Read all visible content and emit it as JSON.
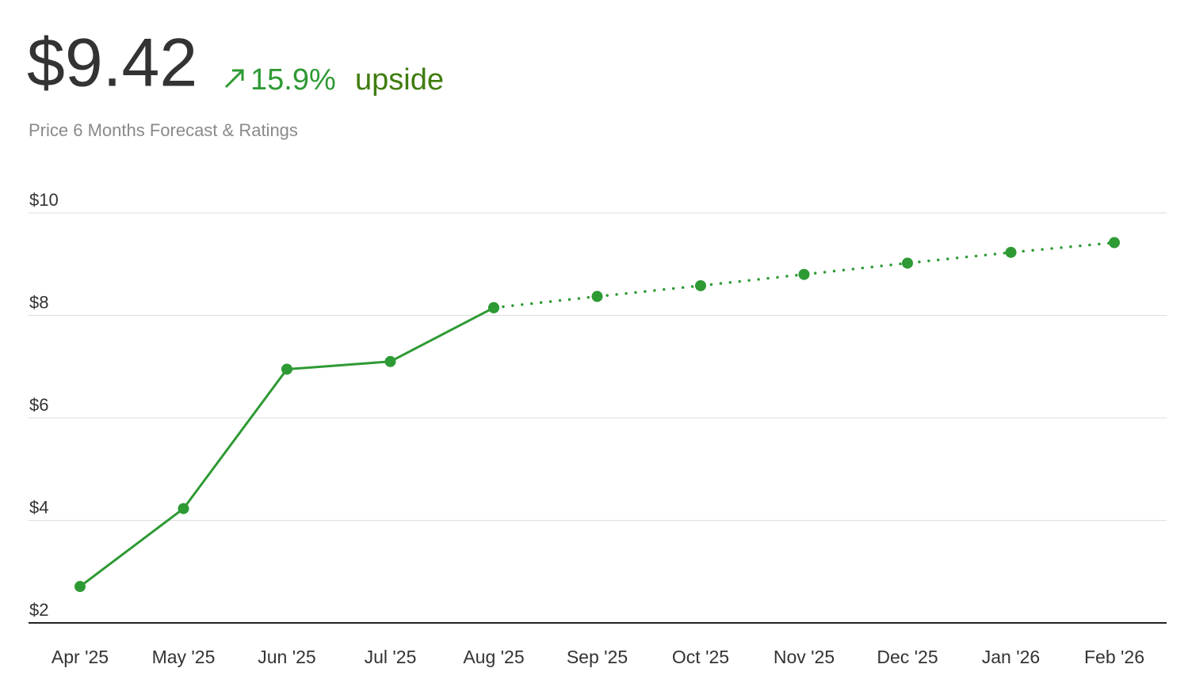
{
  "header": {
    "price": "$9.42",
    "change": "15.9%",
    "change_label": "upside",
    "subtitle": "Price 6 Months Forecast & Ratings"
  },
  "chart_data": {
    "type": "line",
    "categories": [
      "Apr '25",
      "May '25",
      "Jun '25",
      "Jul '25",
      "Aug '25",
      "Sep '25",
      "Oct '25",
      "Nov '25",
      "Dec '25",
      "Jan '26",
      "Feb '26"
    ],
    "series": [
      {
        "color": "#2e9a34",
        "line": "solid",
        "values": [
          2.71,
          4.23,
          6.95,
          7.1,
          8.15,
          null,
          null,
          null,
          null,
          null,
          null
        ]
      },
      {
        "color": "#2e9a34",
        "line": "dotted",
        "values": [
          null,
          null,
          null,
          null,
          8.15,
          8.37,
          8.58,
          8.8,
          9.02,
          9.23,
          9.42
        ]
      }
    ],
    "ylim": [
      2,
      10
    ],
    "yticks": [
      {
        "value": 2,
        "label": "$2"
      },
      {
        "value": 4,
        "label": "$4"
      },
      {
        "value": 6,
        "label": "$6"
      },
      {
        "value": 8,
        "label": "$8"
      },
      {
        "value": 10,
        "label": "$10"
      }
    ],
    "grid": true
  }
}
